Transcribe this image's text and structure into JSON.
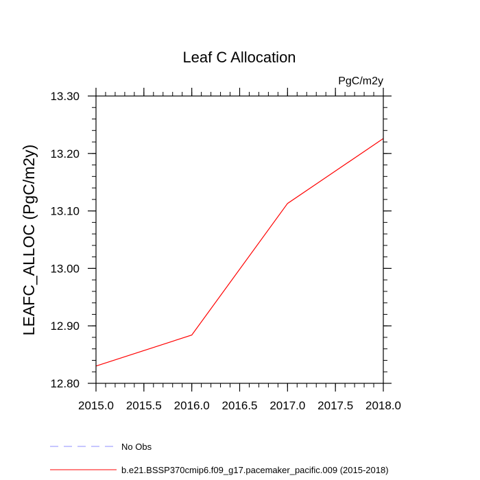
{
  "chart_data": {
    "type": "line",
    "title": "Leaf C Allocation",
    "units_label": "PgC/m2y",
    "xlabel": "",
    "ylabel": "LEAFC_ALLOC  (PgC/m2y)",
    "xlim": [
      2015.0,
      2018.0
    ],
    "ylim": [
      12.8,
      13.3
    ],
    "x_ticks": [
      2015.0,
      2015.5,
      2016.0,
      2016.5,
      2017.0,
      2017.5,
      2018.0
    ],
    "x_tick_labels": [
      "2015.0",
      "2015.5",
      "2016.0",
      "2016.5",
      "2017.0",
      "2017.5",
      "2018.0"
    ],
    "x_minor_step": 0.1,
    "y_ticks": [
      12.8,
      12.9,
      13.0,
      13.1,
      13.2,
      13.3
    ],
    "y_tick_labels": [
      "12.80",
      "12.90",
      "13.00",
      "13.10",
      "13.20",
      "13.30"
    ],
    "y_minor_step": 0.02,
    "grid": false,
    "legend_position": "bottom",
    "series": [
      {
        "name": "b.e21.BSSP370cmip6.f09_g17.pacemaker_pacific.009 (2015-2018)",
        "color": "#ff0000",
        "dash": "solid",
        "x": [
          2015.0,
          2016.0,
          2017.0,
          2018.0
        ],
        "values": [
          12.83,
          12.884,
          13.113,
          13.226
        ]
      }
    ],
    "legend": [
      {
        "label": "No Obs",
        "color": "#8c8cff",
        "dash": "dashed"
      },
      {
        "label": "b.e21.BSSP370cmip6.f09_g17.pacemaker_pacific.009 (2015-2018)",
        "color": "#ff0000",
        "dash": "solid"
      }
    ]
  }
}
